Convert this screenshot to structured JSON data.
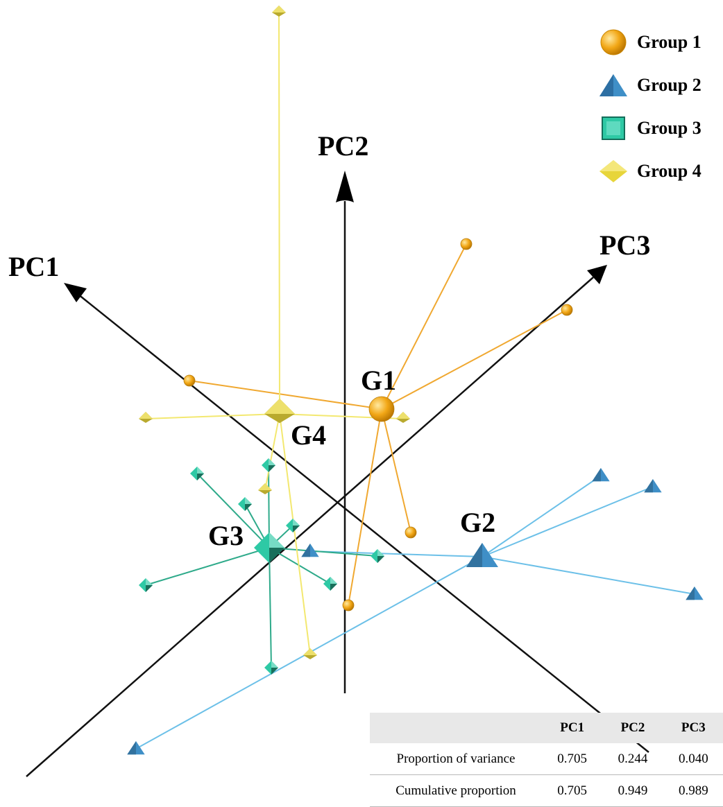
{
  "chart_data": {
    "type": "scatter",
    "title": "",
    "axes": [
      "PC1",
      "PC2",
      "PC3"
    ],
    "series": [
      {
        "name": "Group 1",
        "marker": "sphere",
        "color": "#f2a716",
        "centroid_label": "G1",
        "centroid": [
          550,
          590
        ],
        "points": [
          [
            672,
            352
          ],
          [
            817,
            447
          ],
          [
            273,
            549
          ],
          [
            592,
            768
          ],
          [
            502,
            873
          ]
        ]
      },
      {
        "name": "Group 2",
        "marker": "triangle",
        "color": "#3f8fc7",
        "centroid_label": "G2",
        "centroid": [
          695,
          803
        ],
        "points": [
          [
            866,
            686
          ],
          [
            941,
            702
          ],
          [
            1001,
            857
          ],
          [
            447,
            795
          ],
          [
            196,
            1080
          ]
        ]
      },
      {
        "name": "Group 3",
        "marker": "cube",
        "color": "#2ec9a5",
        "centroid_label": "G3",
        "centroid": [
          388,
          790
        ],
        "points": [
          [
            284,
            683
          ],
          [
            387,
            671
          ],
          [
            353,
            727
          ],
          [
            422,
            758
          ],
          [
            544,
            802
          ],
          [
            476,
            842
          ],
          [
            210,
            844
          ],
          [
            391,
            963
          ]
        ]
      },
      {
        "name": "Group 4",
        "marker": "diamond",
        "color": "#e7d53a",
        "centroid_label": "G4",
        "centroid": [
          403,
          597
        ],
        "points": [
          [
            402,
            18
          ],
          [
            210,
            604
          ],
          [
            581,
            604
          ],
          [
            382,
            707
          ],
          [
            447,
            945
          ]
        ]
      }
    ]
  },
  "legend": [
    {
      "label": "Group 1",
      "icon": "sphere-icon",
      "color": "#f2a716"
    },
    {
      "label": "Group 2",
      "icon": "triangle-icon",
      "color": "#3f8fc7"
    },
    {
      "label": "Group 3",
      "icon": "cube-icon",
      "color": "#2ec9a5"
    },
    {
      "label": "Group 4",
      "icon": "diamond-icon",
      "color": "#e7d53a"
    }
  ],
  "table": {
    "headers": [
      "PC1",
      "PC2",
      "PC3"
    ],
    "rows": [
      {
        "label": "Proportion of variance",
        "values": [
          "0.705",
          "0.244",
          "0.040"
        ]
      },
      {
        "label": "Cumulative proportion",
        "values": [
          "0.705",
          "0.949",
          "0.989"
        ]
      }
    ]
  }
}
